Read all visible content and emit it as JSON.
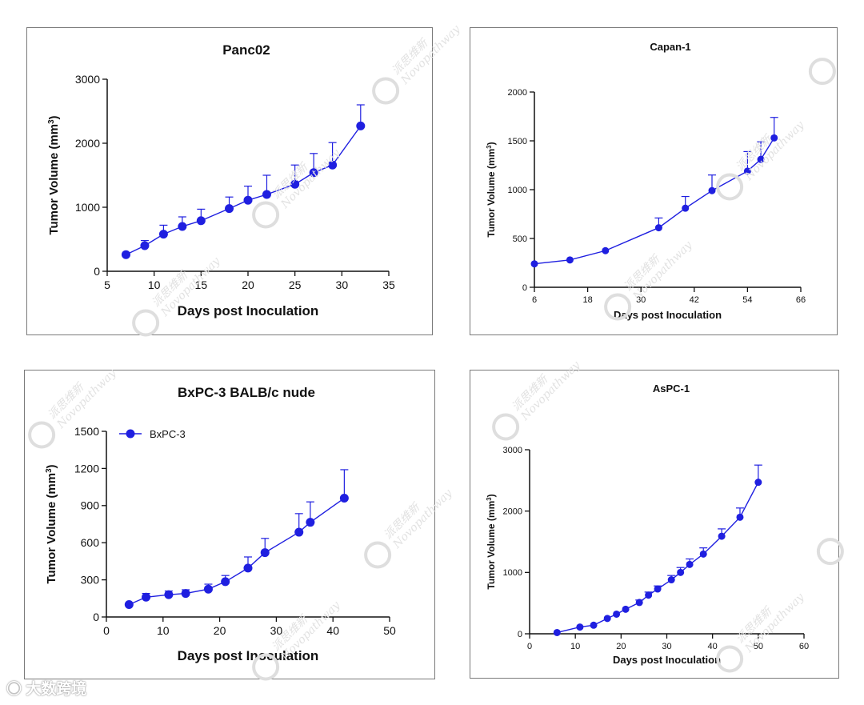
{
  "charts": [
    {
      "type": "line",
      "title": "Panc02",
      "xlabel": "Days post Inoculation",
      "ylabel": "Tumor Volume (mm",
      "ylabel_sup": "3",
      "ylabel_end": ")",
      "xticks": [
        "5",
        "10",
        "15",
        "20",
        "25",
        "30",
        "35"
      ],
      "yticks": [
        "0",
        "1000",
        "2000",
        "3000"
      ],
      "xlim": [
        5,
        35
      ],
      "ylim": [
        0,
        3000
      ],
      "series": [
        {
          "name": "Panc02",
          "color": "#1f1fe0",
          "x": [
            7,
            9,
            11,
            13,
            15,
            18,
            20,
            22,
            25,
            27,
            29,
            32
          ],
          "y": [
            260,
            400,
            580,
            700,
            790,
            980,
            1110,
            1200,
            1360,
            1540,
            1660,
            2270
          ],
          "err": [
            0,
            80,
            140,
            150,
            180,
            180,
            220,
            300,
            300,
            300,
            350,
            330
          ]
        }
      ]
    },
    {
      "type": "line",
      "title": "Capan-1",
      "xlabel": "Days post Inoculation",
      "ylabel": "Tumor Volume (mm",
      "ylabel_sup": "3",
      "ylabel_end": ")",
      "xticks": [
        "6",
        "18",
        "30",
        "42",
        "54",
        "66"
      ],
      "yticks": [
        "0",
        "500",
        "1000",
        "1500",
        "2000"
      ],
      "xlim": [
        6,
        66
      ],
      "ylim": [
        0,
        2000
      ],
      "series": [
        {
          "name": "Capan-1",
          "color": "#1f1fe0",
          "x": [
            6,
            14,
            22,
            34,
            40,
            46,
            54,
            57,
            60
          ],
          "y": [
            240,
            280,
            375,
            610,
            810,
            990,
            1190,
            1310,
            1530
          ],
          "err": [
            0,
            0,
            0,
            100,
            120,
            160,
            200,
            180,
            210
          ]
        }
      ]
    },
    {
      "type": "line",
      "title": "BxPC-3 BALB/c nude",
      "xlabel": "Days post Inoculation",
      "ylabel": "Tumor Volume (mm",
      "ylabel_sup": "3",
      "ylabel_end": ")",
      "legend": "BxPC-3",
      "xticks": [
        "0",
        "10",
        "20",
        "30",
        "40",
        "50"
      ],
      "yticks": [
        "0",
        "300",
        "600",
        "900",
        "1200",
        "1500"
      ],
      "xlim": [
        0,
        50
      ],
      "ylim": [
        0,
        1500
      ],
      "series": [
        {
          "name": "BxPC-3",
          "color": "#1f1fe0",
          "x": [
            4,
            7,
            11,
            14,
            18,
            21,
            25,
            28,
            34,
            36,
            42
          ],
          "y": [
            100,
            160,
            180,
            190,
            225,
            285,
            395,
            520,
            685,
            765,
            960
          ],
          "err": [
            0,
            30,
            30,
            30,
            40,
            50,
            90,
            115,
            150,
            165,
            230
          ]
        }
      ]
    },
    {
      "type": "line",
      "title": "AsPC-1",
      "xlabel": "Days post Inoculation",
      "ylabel": "Tumor Volume (mm",
      "ylabel_sup": "3",
      "ylabel_end": ")",
      "xticks": [
        "0",
        "10",
        "20",
        "30",
        "40",
        "50",
        "60"
      ],
      "yticks": [
        "0",
        "1000",
        "2000",
        "3000"
      ],
      "xlim": [
        0,
        60
      ],
      "ylim": [
        0,
        3000
      ],
      "series": [
        {
          "name": "AsPC-1",
          "color": "#1f1fe0",
          "x": [
            6,
            11,
            14,
            17,
            19,
            21,
            24,
            26,
            28,
            31,
            33,
            35,
            38,
            42,
            46,
            50
          ],
          "y": [
            20,
            110,
            140,
            250,
            320,
            400,
            510,
            630,
            730,
            880,
            1000,
            1130,
            1300,
            1590,
            1900,
            2470
          ],
          "err": [
            0,
            0,
            0,
            0,
            0,
            0,
            40,
            50,
            50,
            70,
            80,
            90,
            100,
            120,
            150,
            280
          ]
        }
      ]
    }
  ],
  "watermark": {
    "cn": "派思维新",
    "en": "Novopathway"
  },
  "footer": "大数跨境"
}
